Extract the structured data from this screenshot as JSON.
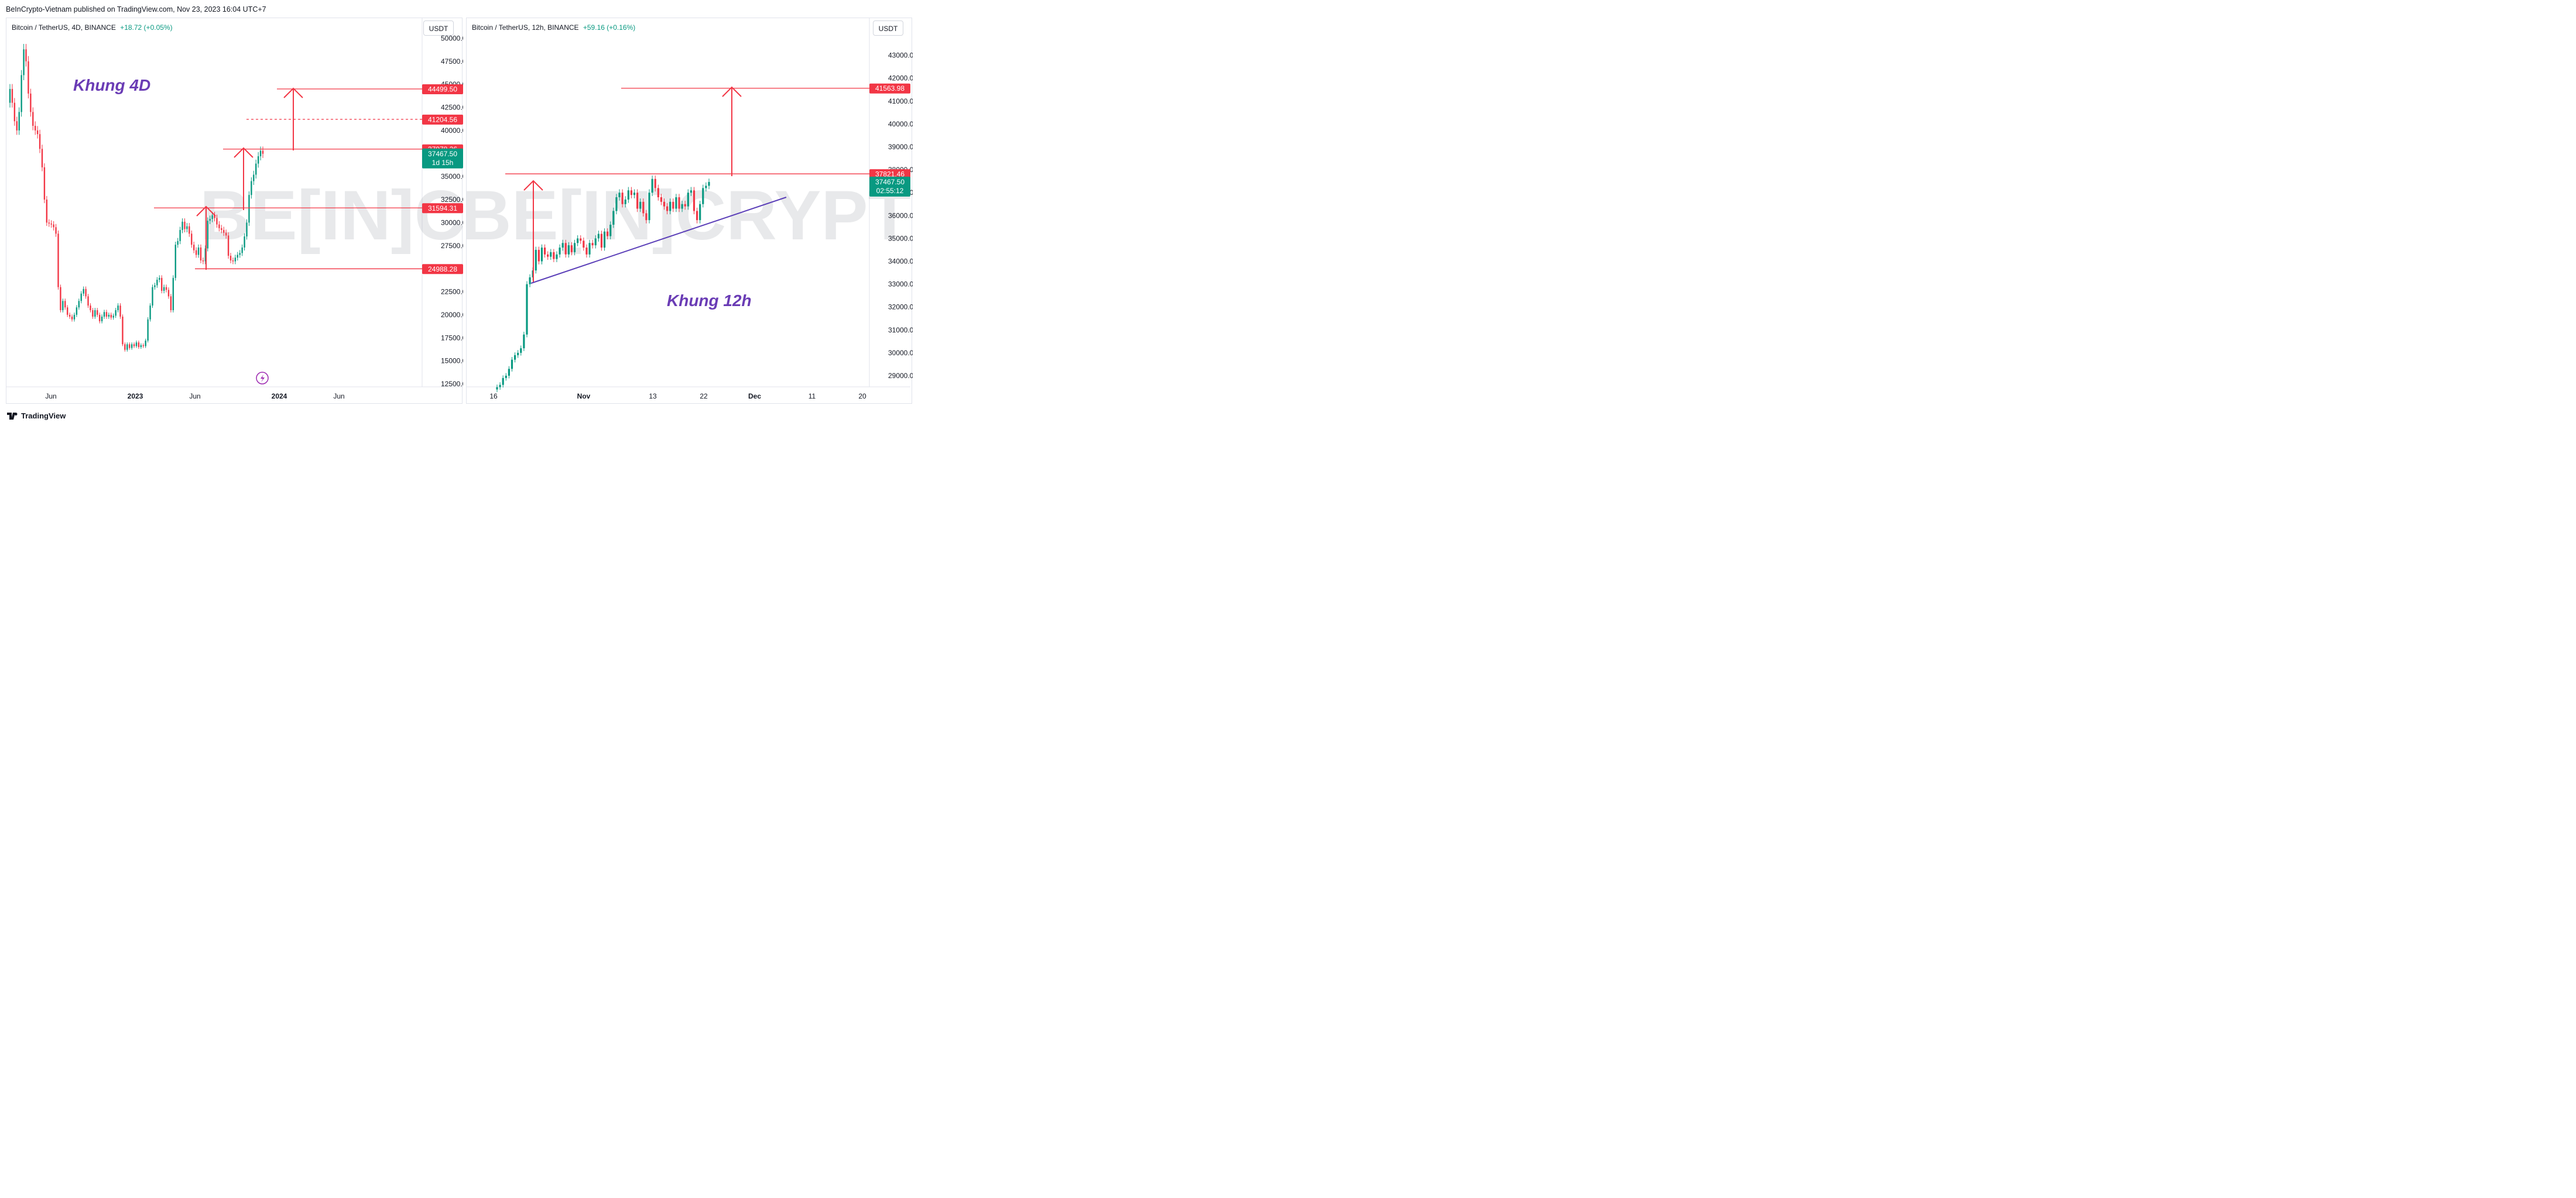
{
  "header": {
    "publisher_line": "BeInCrypto-Vietnam published on TradingView.com, Nov 23, 2023 16:04 UTC+7"
  },
  "footer": {
    "brand": "TradingView"
  },
  "watermark": "BE[IN]CRYPTO",
  "colors": {
    "up": "#089981",
    "down": "#f23645",
    "level": "#f23645",
    "trend": "#5b3fb8",
    "label_purple": "#6a3cb5",
    "last_price_bg": "#089981"
  },
  "chart_data": [
    {
      "type": "candlestick",
      "legend": {
        "symbol": "Bitcoin / TetherUS, 4D, BINANCE",
        "change": "+18.72 (+0.05%)"
      },
      "unit_button": "USDT",
      "annotation": "Khung 4D",
      "y_ticks": [
        "50000.00",
        "47500.00",
        "45000.00",
        "42500.00",
        "40000.00",
        "37500.00",
        "35000.00",
        "32500.00",
        "30000.00",
        "27500.00",
        "25000.00",
        "22500.00",
        "20000.00",
        "17500.00",
        "15000.00",
        "12500.00"
      ],
      "x_ticks": [
        {
          "label": "Jun",
          "bold": false
        },
        {
          "label": "2023",
          "bold": true
        },
        {
          "label": "Jun",
          "bold": false
        },
        {
          "label": "2024",
          "bold": true
        },
        {
          "label": "Jun",
          "bold": false
        }
      ],
      "levels": [
        {
          "label": "44499.50",
          "value": 44499.5,
          "style": "solid"
        },
        {
          "label": "41204.56",
          "value": 41204.56,
          "style": "dashed"
        },
        {
          "label": "37978.26",
          "value": 37978.26,
          "style": "solid"
        },
        {
          "label": "31594.31",
          "value": 31594.31,
          "style": "solid"
        },
        {
          "label": "24988.28",
          "value": 24988.28,
          "style": "solid"
        }
      ],
      "last_price": {
        "label": "37467.50",
        "countdown": "1d 15h",
        "value": 37467.5
      },
      "series_close": [
        44500,
        43000,
        41000,
        40000,
        42000,
        46000,
        48800,
        47500,
        44000,
        42000,
        40500,
        40000,
        39600,
        38000,
        36000,
        32500,
        30000,
        29900,
        29800,
        29500,
        28800,
        23000,
        20500,
        21500,
        20800,
        20000,
        19800,
        19500,
        20000,
        20800,
        21500,
        22300,
        22800,
        22000,
        21000,
        20500,
        19800,
        20500,
        20000,
        19300,
        19800,
        20300,
        19800,
        20000,
        19700,
        19900,
        20500,
        21000,
        19800,
        16800,
        16200,
        16800,
        16400,
        16800,
        16600,
        17000,
        16500,
        16700,
        16600,
        17200,
        19500,
        21000,
        23000,
        23200,
        23800,
        24000,
        22600,
        23000,
        22700,
        22000,
        20500,
        24000,
        27600,
        28000,
        29200,
        30100,
        29300,
        29600,
        28800,
        27600,
        27000,
        26500,
        27300,
        25900,
        25800,
        27200,
        30200,
        30400,
        30800,
        30500,
        29800,
        29400,
        29200,
        28900,
        28600,
        26400,
        25900,
        25800,
        26200,
        26500,
        26700,
        27300,
        28500,
        30000,
        33000,
        34500,
        35200,
        36400,
        37200,
        37800,
        37467
      ]
    },
    {
      "type": "candlestick",
      "legend": {
        "symbol": "Bitcoin / TetherUS, 12h, BINANCE",
        "change": "+59.16 (+0.16%)"
      },
      "unit_button": "USDT",
      "annotation": "Khung 12h",
      "y_ticks": [
        "43000.00",
        "42000.00",
        "41000.00",
        "40000.00",
        "39000.00",
        "38000.00",
        "37000.00",
        "36000.00",
        "35000.00",
        "34000.00",
        "33000.00",
        "32000.00",
        "31000.00",
        "30000.00",
        "29000.00"
      ],
      "x_ticks": [
        {
          "label": "16",
          "bold": false
        },
        {
          "label": "Nov",
          "bold": true
        },
        {
          "label": "13",
          "bold": false
        },
        {
          "label": "22",
          "bold": false
        },
        {
          "label": "Dec",
          "bold": true
        },
        {
          "label": "11",
          "bold": false
        },
        {
          "label": "20",
          "bold": false
        }
      ],
      "levels": [
        {
          "label": "41563.98",
          "value": 41563.98,
          "style": "solid"
        },
        {
          "label": "37821.46",
          "value": 37821.46,
          "style": "solid"
        }
      ],
      "last_price": {
        "label": "37467.50",
        "countdown": "02:55:12",
        "value": 37467.5
      },
      "series_close": [
        28500,
        28600,
        28900,
        29000,
        29300,
        29700,
        29900,
        30000,
        30200,
        30800,
        33000,
        33300,
        33600,
        34500,
        34000,
        34600,
        34300,
        34200,
        34400,
        34100,
        34300,
        34600,
        34800,
        34300,
        34700,
        34400,
        34800,
        35000,
        34900,
        34600,
        34300,
        34800,
        34700,
        35000,
        35200,
        34600,
        35300,
        35100,
        35600,
        36200,
        36800,
        37000,
        36500,
        36700,
        37100,
        36900,
        37000,
        36300,
        36600,
        36100,
        35800,
        37000,
        37600,
        37200,
        36800,
        36600,
        36400,
        36200,
        36600,
        36300,
        36800,
        36300,
        36500,
        36400,
        37000,
        37100,
        36200,
        35800,
        36500,
        37200,
        37300,
        37467
      ]
    }
  ]
}
